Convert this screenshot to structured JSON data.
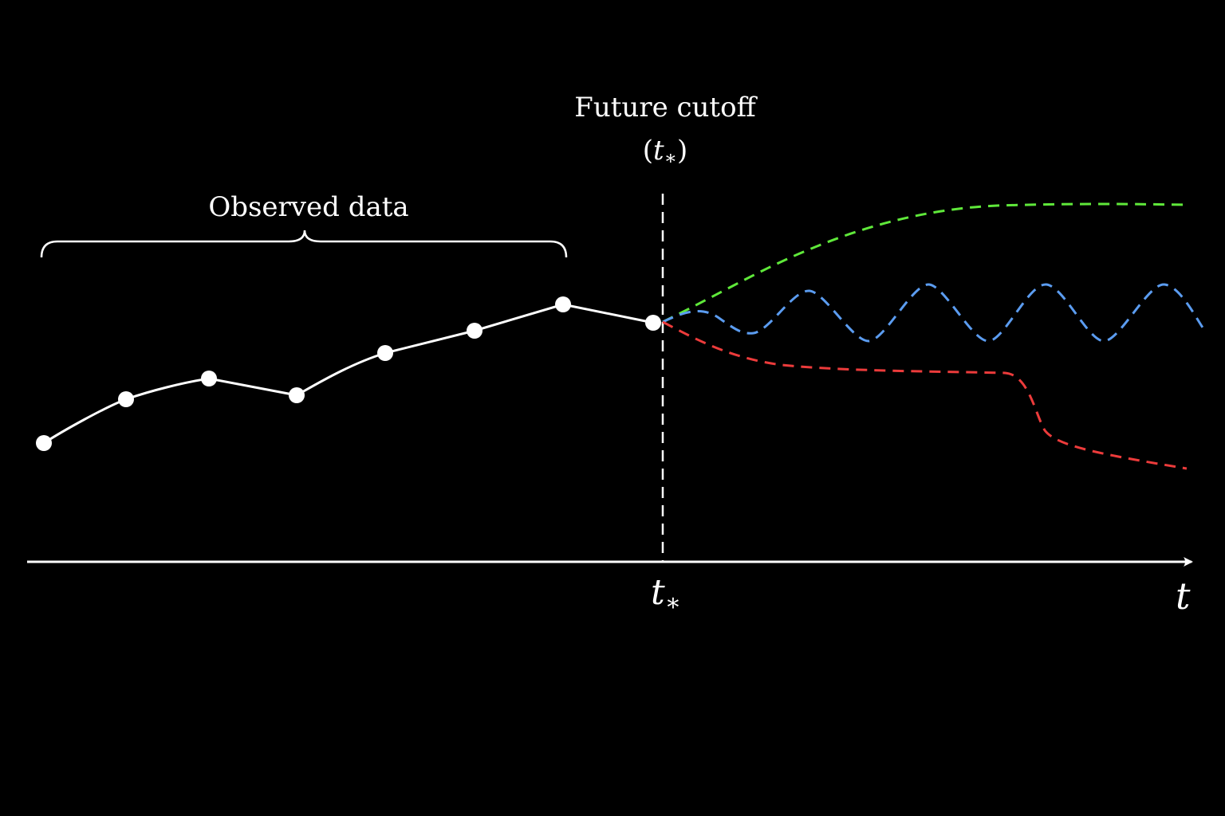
{
  "colors": {
    "background": "#000000",
    "foreground": "#ffffff",
    "green_forecast": "#5fe83a",
    "blue_forecast": "#5b9cf0",
    "red_forecast": "#ec3b3b"
  },
  "labels": {
    "observed": "Observed data",
    "cutoff_line1": "Future cutoff",
    "cutoff_open": "(",
    "cutoff_t": "t",
    "cutoff_sub": "∗",
    "cutoff_close": ")",
    "axis_tick_t": "t",
    "axis_tick_sub": "∗",
    "axis_end": "t"
  },
  "chart_data": {
    "type": "line",
    "x_axis_label": "t",
    "cutoff_label": "t∗",
    "observed_points": [
      {
        "t": 0.0,
        "y": 0.3
      },
      {
        "t": 1.0,
        "y": 0.42
      },
      {
        "t": 2.0,
        "y": 0.48
      },
      {
        "t": 3.0,
        "y": 0.43
      },
      {
        "t": 4.0,
        "y": 0.59
      },
      {
        "t": 5.0,
        "y": 0.65
      },
      {
        "t": 6.0,
        "y": 0.73
      },
      {
        "t": 7.0,
        "y": 0.66
      }
    ],
    "forecasts": [
      {
        "style": "dashed",
        "color": "green",
        "shape": "rising then plateau",
        "points": [
          [
            7.0,
            0.66
          ],
          [
            8.0,
            0.82
          ],
          [
            9.0,
            0.95
          ],
          [
            10.0,
            1.04
          ],
          [
            11.0,
            1.08
          ],
          [
            12.0,
            1.09
          ],
          [
            13.0,
            1.09
          ],
          [
            13.6,
            1.09
          ]
        ]
      },
      {
        "style": "dashed",
        "color": "blue",
        "shape": "oscillating",
        "points": [
          [
            7.0,
            0.66
          ],
          [
            7.5,
            0.68
          ],
          [
            8.0,
            0.65
          ],
          [
            8.6,
            0.76
          ],
          [
            9.2,
            0.62
          ],
          [
            9.9,
            0.77
          ],
          [
            10.6,
            0.61
          ],
          [
            11.3,
            0.77
          ],
          [
            12.0,
            0.61
          ],
          [
            12.7,
            0.77
          ],
          [
            13.3,
            0.63
          ],
          [
            13.6,
            0.64
          ]
        ]
      },
      {
        "style": "dashed",
        "color": "red",
        "shape": "declining with step drop",
        "points": [
          [
            7.0,
            0.66
          ],
          [
            8.0,
            0.57
          ],
          [
            9.0,
            0.53
          ],
          [
            10.0,
            0.52
          ],
          [
            11.0,
            0.52
          ],
          [
            11.6,
            0.5
          ],
          [
            12.0,
            0.34
          ],
          [
            12.6,
            0.3
          ],
          [
            13.6,
            0.25
          ]
        ]
      }
    ]
  }
}
